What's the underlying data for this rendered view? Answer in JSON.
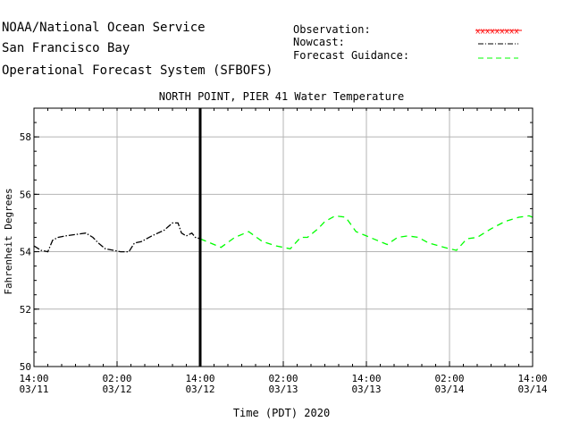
{
  "header": {
    "line1": "NOAA/National Ocean Service",
    "line2": "San Francisco Bay",
    "line3": "Operational Forecast System (SFBOFS)"
  },
  "legend": {
    "observation": "Observation:",
    "nowcast": "Nowcast:",
    "forecast": "Forecast Guidance:"
  },
  "colors": {
    "observation": "#ff0000",
    "nowcast": "#000000",
    "forecast": "#00ff00",
    "grid": "#b4b4b4"
  },
  "chart_data": {
    "type": "line",
    "title": "NORTH POINT, PIER 41 Water Temperature",
    "xlabel": "Time (PDT) 2020",
    "ylabel": "Fahrenheit Degrees",
    "ylim": [
      50,
      59
    ],
    "xlim_hours": [
      0,
      72
    ],
    "yticks": [
      50,
      52,
      54,
      56,
      58
    ],
    "xticks": [
      {
        "hour": 0,
        "time": "14:00",
        "date": "03/11"
      },
      {
        "hour": 12,
        "time": "02:00",
        "date": "03/12"
      },
      {
        "hour": 24,
        "time": "14:00",
        "date": "03/12"
      },
      {
        "hour": 36,
        "time": "02:00",
        "date": "03/13"
      },
      {
        "hour": 48,
        "time": "14:00",
        "date": "03/13"
      },
      {
        "hour": 60,
        "time": "02:00",
        "date": "03/14"
      },
      {
        "hour": 72,
        "time": "14:00",
        "date": "03/14"
      }
    ],
    "now_hour": 24,
    "series": [
      {
        "name": "Nowcast",
        "style": "dash-dot",
        "x": [
          0,
          1,
          2,
          2.7,
          3.5,
          4.5,
          6,
          7.5,
          8.5,
          9.3,
          10.3,
          11.5,
          12.5,
          13.7,
          14.5,
          15.5,
          17,
          18.8,
          20,
          20.8,
          21.3,
          22,
          22.8,
          23.3,
          24
        ],
        "y": [
          54.2,
          54.05,
          54.0,
          54.4,
          54.5,
          54.55,
          54.6,
          54.65,
          54.5,
          54.3,
          54.1,
          54.05,
          54.0,
          54.0,
          54.3,
          54.35,
          54.55,
          54.75,
          55.0,
          55.0,
          54.65,
          54.55,
          54.65,
          54.5,
          54.45
        ]
      },
      {
        "name": "Forecast Guidance",
        "style": "dashed",
        "x": [
          24,
          25.5,
          27,
          29,
          31,
          33,
          35,
          37,
          38.5,
          39.5,
          41,
          42,
          43.5,
          45,
          46.5,
          48,
          49.5,
          51,
          52.5,
          54,
          55.5,
          57,
          58.5,
          60,
          61,
          62.5,
          64,
          66,
          68,
          70,
          71.5,
          72
        ],
        "y": [
          54.45,
          54.3,
          54.15,
          54.5,
          54.7,
          54.35,
          54.2,
          54.1,
          54.5,
          54.5,
          54.8,
          55.05,
          55.25,
          55.2,
          54.7,
          54.55,
          54.4,
          54.25,
          54.5,
          54.55,
          54.5,
          54.3,
          54.2,
          54.1,
          54.05,
          54.45,
          54.5,
          54.8,
          55.05,
          55.2,
          55.25,
          55.2
        ]
      }
    ]
  }
}
